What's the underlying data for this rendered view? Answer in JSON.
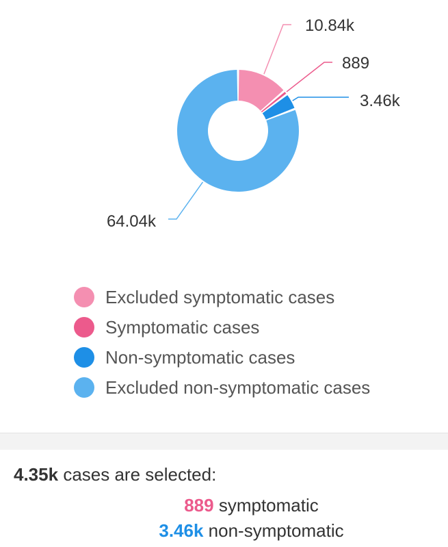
{
  "chart_data": {
    "type": "pie",
    "donut": true,
    "categories": [
      "Excluded symptomatic cases",
      "Symptomatic cases",
      "Non-symptomatic cases",
      "Excluded non-symptomatic cases"
    ],
    "values": [
      10840,
      889,
      3460,
      64040
    ],
    "value_labels": [
      "10.84k",
      "889",
      "3.46k",
      "64.04k"
    ],
    "colors": [
      "#f48fb1",
      "#ec5a8c",
      "#1e8fe6",
      "#5bb2ef"
    ],
    "legend_position": "bottom"
  },
  "summary": {
    "total": "4.35k",
    "total_suffix": "cases are selected:",
    "symptomatic_value": "889",
    "symptomatic_label": "symptomatic",
    "non_symptomatic_value": "3.46k",
    "non_symptomatic_label": "non-symptomatic"
  }
}
